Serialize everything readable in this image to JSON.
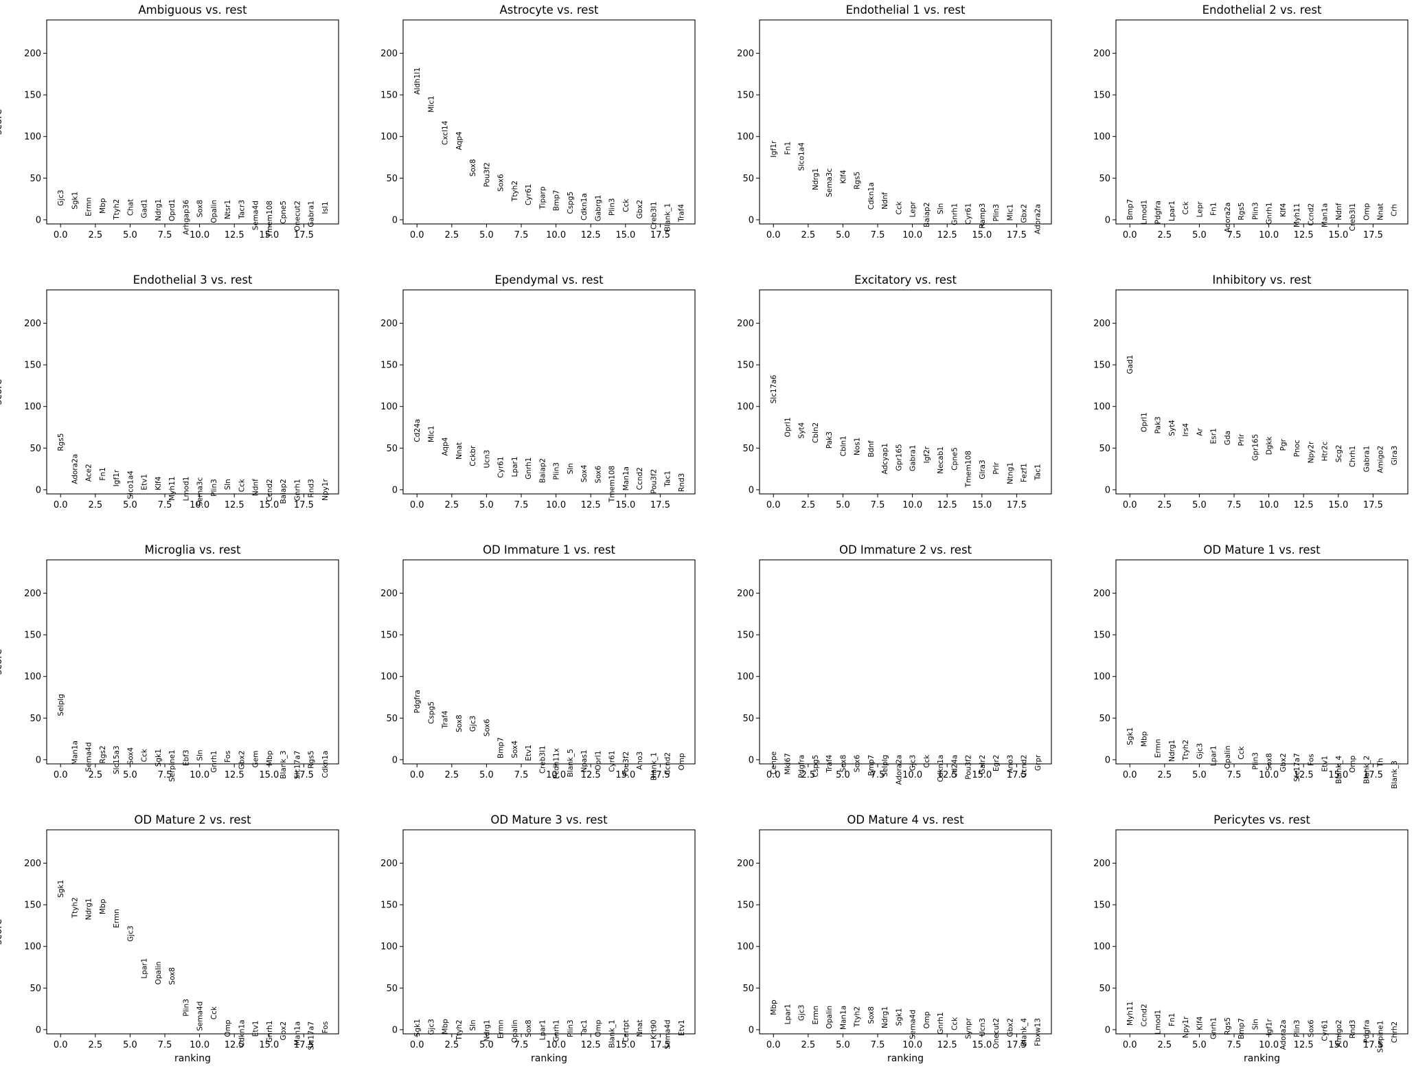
{
  "chart_data": {
    "type": "scatter",
    "ylim": [
      -5,
      240
    ],
    "xlim": [
      -1,
      20
    ],
    "xticks": [
      "0.0",
      "2.5",
      "5.0",
      "7.5",
      "10.0",
      "12.5",
      "15.0",
      "17.5"
    ],
    "xtick_values": [
      0,
      2.5,
      5,
      7.5,
      10,
      12.5,
      15,
      17.5
    ],
    "yticks": [
      "0",
      "50",
      "100",
      "150",
      "200"
    ],
    "ytick_values": [
      0,
      50,
      100,
      150,
      200
    ],
    "xlabel": "ranking",
    "ylabel": "score",
    "grid": false,
    "panels": [
      {
        "title": "Ambiguous vs. rest",
        "genes": [
          "Gjc3",
          "Sgk1",
          "Ermn",
          "Mbp",
          "Ttyh2",
          "Chat",
          "Gad1",
          "Ndrg1",
          "Oprd1",
          "Arhgap36",
          "Sox8",
          "Opalin",
          "Ntsr1",
          "Tacr3",
          "Sema4d",
          "Tmem108",
          "Cpne5",
          "Onecut2",
          "Gabra1",
          "Isl1"
        ],
        "scores": [
          36,
          34,
          27,
          26,
          25,
          25,
          25,
          25,
          25,
          24,
          24,
          24,
          24,
          24,
          23,
          23,
          23,
          23,
          23,
          22
        ]
      },
      {
        "title": "Astrocyte vs. rest",
        "genes": [
          "Aldh1l1",
          "Mlc1",
          "Cxcl14",
          "Aqp4",
          "Sox8",
          "Pou3f2",
          "Sox6",
          "Ttyh2",
          "Cyr61",
          "Tiparp",
          "Bmp7",
          "Cspg5",
          "Cdkn1a",
          "Gabrg1",
          "Plin3",
          "Cck",
          "Gbx2",
          "Creb3l1",
          "Blank_1",
          "Traf4"
        ],
        "scores": [
          183,
          149,
          119,
          106,
          73,
          69,
          55,
          47,
          43,
          40,
          36,
          34,
          32,
          30,
          26,
          25,
          24,
          22,
          20,
          19
        ]
      },
      {
        "title": "Endothelial 1 vs. rest",
        "genes": [
          "Igf1r",
          "Fn1",
          "Slco1a4",
          "Ndrg1",
          "Sema3c",
          "Klf4",
          "Rgs5",
          "Cdkn1a",
          "Ndnf",
          "Cck",
          "Lepr",
          "Baiap2",
          "Sln",
          "Gnrh1",
          "Cyr61",
          "Ramp3",
          "Plin3",
          "Mlc1",
          "Gbx2",
          "Adora2a"
        ],
        "scores": [
          95,
          94,
          93,
          62,
          62,
          60,
          58,
          45,
          33,
          22,
          22,
          21,
          20,
          20,
          20,
          20,
          19,
          19,
          19,
          19
        ]
      },
      {
        "title": "Endothelial 2 vs. rest",
        "genes": [
          "Bmp7",
          "Lmod1",
          "Pdgfra",
          "Lpar1",
          "Cck",
          "Lepr",
          "Fn1",
          "Adora2a",
          "Rgs5",
          "Plin3",
          "Gnrh1",
          "Klf4",
          "Myh11",
          "Ccnd2",
          "Man1a",
          "Ndnf",
          "Creb3l1",
          "Omp",
          "Nnat",
          "Crh"
        ],
        "scores": [
          25,
          24,
          23,
          23,
          22,
          22,
          21,
          21,
          21,
          21,
          21,
          20,
          20,
          20,
          20,
          20,
          20,
          20,
          20,
          19
        ]
      },
      {
        "title": "Endothelial 3 vs. rest",
        "genes": [
          "Rgs5",
          "Adora2a",
          "Ace2",
          "Fn1",
          "Igf1r",
          "Slco1a4",
          "Etv1",
          "Klf4",
          "Myh11",
          "Lmod1",
          "Sema3c",
          "Plin3",
          "Sln",
          "Cck",
          "Ndnf",
          "Ccnd2",
          "Baiap2",
          "Gnrh1",
          "Rnd3",
          "Npy1r"
        ],
        "scores": [
          68,
          43,
          31,
          27,
          24,
          23,
          19,
          16,
          16,
          16,
          15,
          13,
          13,
          13,
          13,
          13,
          13,
          13,
          13,
          13
        ]
      },
      {
        "title": "Ependymal vs. rest",
        "genes": [
          "Cd24a",
          "Mlc1",
          "Aqp4",
          "Nnat",
          "Cckbr",
          "Ucn3",
          "Cyr61",
          "Lpar1",
          "Gnrh1",
          "Baiap2",
          "Plin3",
          "Sln",
          "Sox4",
          "Sox6",
          "Tmem108",
          "Man1a",
          "Ccnd2",
          "Pou3f2",
          "Tac1",
          "Rnd3"
        ],
        "scores": [
          85,
          77,
          63,
          57,
          53,
          48,
          40,
          40,
          39,
          38,
          33,
          32,
          30,
          29,
          29,
          28,
          27,
          25,
          23,
          20
        ]
      },
      {
        "title": "Excitatory vs. rest",
        "genes": [
          "Slc17a6",
          "Oprl1",
          "Syt4",
          "Cbln2",
          "Pak3",
          "Cbln1",
          "Nos1",
          "Bdnf",
          "Adcyap1",
          "Gpr165",
          "Gabra1",
          "Igf2r",
          "Necab1",
          "Cpne5",
          "Tmem108",
          "Glra3",
          "Prlr",
          "Ntng1",
          "Fezf1",
          "Tac1"
        ],
        "scores": [
          138,
          87,
          81,
          81,
          70,
          65,
          63,
          59,
          56,
          55,
          54,
          52,
          52,
          51,
          47,
          36,
          33,
          33,
          32,
          31
        ]
      },
      {
        "title": "Inhibitory vs. rest",
        "genes": [
          "Gad1",
          "Oprl1",
          "Pak3",
          "Syt4",
          "Irs4",
          "Ar",
          "Esr1",
          "Gda",
          "Prlr",
          "Gpr165",
          "Dgkk",
          "Pgr",
          "Pnoc",
          "Npy2r",
          "Htr2c",
          "Scg2",
          "Chrh1",
          "Gabra1",
          "Amigo2",
          "Glra3"
        ],
        "scores": [
          162,
          93,
          88,
          84,
          80,
          74,
          74,
          71,
          67,
          67,
          64,
          61,
          60,
          58,
          58,
          54,
          53,
          53,
          53,
          53
        ]
      },
      {
        "title": "Microglia vs. rest",
        "genes": [
          "Selplg",
          "Man1a",
          "Sema4d",
          "Rgs2",
          "Slc15a3",
          "Sox4",
          "Cck",
          "Sgk1",
          "Serpine1",
          "Ebf3",
          "Sln",
          "Gnrh1",
          "Fos",
          "Gbx2",
          "Gem",
          "Mbp",
          "Blank_3",
          "Slc17a7",
          "Rgs5",
          "Cdkn1a"
        ],
        "scores": [
          79,
          23,
          21,
          17,
          17,
          15,
          13,
          13,
          12,
          12,
          12,
          11,
          11,
          11,
          11,
          11,
          11,
          11,
          11,
          11
        ]
      },
      {
        "title": "OD Immature 1 vs. rest",
        "genes": [
          "Pdgfra",
          "Cspg5",
          "Traf4",
          "Sox8",
          "Gjc3",
          "Sox6",
          "Bmp7",
          "Sox4",
          "Etv1",
          "Creb3l1",
          "Pcdh11x",
          "Blank_5",
          "Npas1",
          "Oprl1",
          "Cyr61",
          "Pou3f2",
          "Ano3",
          "Blank_1",
          "Ccnd2",
          "Omp"
        ],
        "scores": [
          84,
          70,
          59,
          54,
          53,
          49,
          27,
          23,
          18,
          17,
          14,
          13,
          12,
          11,
          11,
          10,
          10,
          9,
          9,
          8
        ]
      },
      {
        "title": "OD Immature 2 vs. rest",
        "genes": [
          "Cenpe",
          "Mki67",
          "Pdgfra",
          "Cspg5",
          "Traf4",
          "Sox8",
          "Sox6",
          "Bmp7",
          "Selplg",
          "Adora2a",
          "Gjc3",
          "Cck",
          "Cdkn1a",
          "Cd24a",
          "Pou3f2",
          "Galr2",
          "Egr2",
          "Ano3",
          "Ccnd2",
          "Grpr"
        ],
        "scores": [
          10,
          8,
          6,
          6,
          6,
          6,
          6,
          6,
          6,
          6,
          6,
          6,
          6,
          6,
          6,
          6,
          6,
          6,
          6,
          6
        ]
      },
      {
        "title": "OD Mature 1 vs. rest",
        "genes": [
          "Sgk1",
          "Mbp",
          "Ermn",
          "Ndrg1",
          "Ttyh2",
          "Gjc3",
          "Lpar1",
          "Opalin",
          "Cck",
          "Plin3",
          "Sox8",
          "Gbx2",
          "Slc17a7",
          "Fos",
          "Etv1",
          "Blank_4",
          "Omp",
          "Blank_2",
          "Th",
          "Blank_3"
        ],
        "scores": [
          39,
          34,
          25,
          24,
          24,
          20,
          17,
          17,
          16,
          9,
          8,
          8,
          8,
          7,
          5,
          5,
          5,
          5,
          2,
          -1
        ]
      },
      {
        "title": "OD Mature 2 vs. rest",
        "genes": [
          "Sgk1",
          "Ttyh2",
          "Ndrg1",
          "Mbp",
          "Ermn",
          "Gjc3",
          "Lpar1",
          "Opalin",
          "Sox8",
          "Plin3",
          "Sema4d",
          "Cck",
          "Omp",
          "Cdkn1a",
          "Etv1",
          "Gnrh1",
          "Gbx2",
          "Man1a",
          "Slc17a7",
          "Fos"
        ],
        "scores": [
          180,
          159,
          158,
          157,
          145,
          125,
          86,
          82,
          75,
          37,
          34,
          28,
          12,
          12,
          11,
          11,
          10,
          10,
          10,
          10
        ]
      },
      {
        "title": "OD Mature 3 vs. rest",
        "genes": [
          "Sgk1",
          "Gjc3",
          "Mbp",
          "Ttyh2",
          "Sln",
          "Ndrg1",
          "Ermn",
          "Opalin",
          "Sox8",
          "Lpar1",
          "Gnrh1",
          "Plin3",
          "Tac1",
          "Omp",
          "Blank_1",
          "Cartpt",
          "Nnat",
          "Krt90",
          "Sema4d",
          "Etv1"
        ],
        "scores": [
          13,
          13,
          13,
          12,
          12,
          12,
          12,
          12,
          12,
          12,
          12,
          12,
          12,
          12,
          12,
          12,
          12,
          12,
          12,
          12
        ]
      },
      {
        "title": "OD Mature 4 vs. rest",
        "genes": [
          "Mbp",
          "Lpar1",
          "Gjc3",
          "Ermn",
          "Opalin",
          "Man1a",
          "Ttyh2",
          "Sox8",
          "Ndrg1",
          "Sgk1",
          "Sema4d",
          "Omp",
          "Gnrh1",
          "Cck",
          "Synpr",
          "Ucn3",
          "Onecut2",
          "Gbx2",
          "Blank_4",
          "Fbxw13"
        ],
        "scores": [
          36,
          31,
          30,
          29,
          29,
          29,
          28,
          28,
          28,
          26,
          24,
          22,
          21,
          15,
          14,
          14,
          14,
          14,
          14,
          14
        ]
      },
      {
        "title": "Pericytes vs. rest",
        "genes": [
          "Myh11",
          "Ccnd2",
          "Lmod1",
          "Fn1",
          "Npy1r",
          "Klf4",
          "Gnrh1",
          "Rgs5",
          "Bmp7",
          "Sln",
          "Igf1r",
          "Adora2a",
          "Plin3",
          "Sox6",
          "Cyr61",
          "Amigo2",
          "Rnd3",
          "Pdgfra",
          "Serpine1",
          "Chrh2"
        ],
        "scores": [
          34,
          31,
          24,
          20,
          16,
          16,
          15,
          15,
          14,
          13,
          13,
          12,
          12,
          12,
          12,
          12,
          12,
          12,
          11,
          10
        ]
      }
    ]
  }
}
